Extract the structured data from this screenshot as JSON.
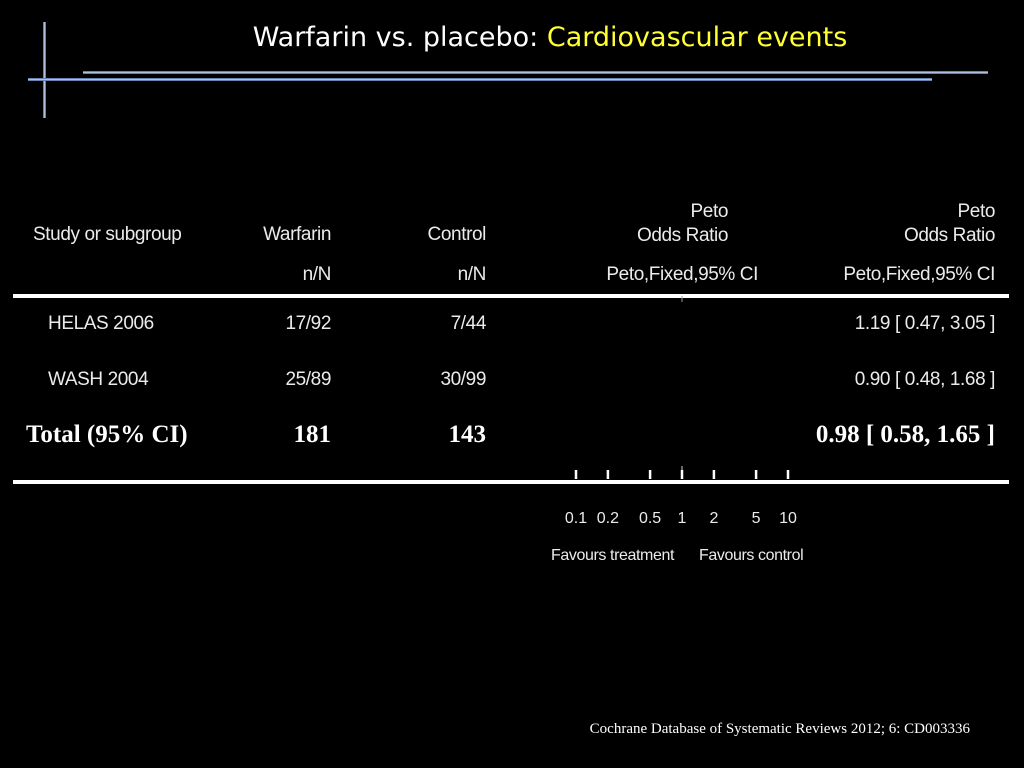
{
  "slide": {
    "title_main": "Warfarin vs. placebo:",
    "title_accent": "Cardiovascular events",
    "source": "Cochrane Database of Systematic Reviews 2012; 6: CD003336",
    "colors": {
      "background": "#000000",
      "accent": "#ffff33",
      "decor_blue": "#9db3dc",
      "text": "#ffffff"
    }
  },
  "chart_data": {
    "type": "table",
    "columns": {
      "study": "Study or subgroup",
      "treatment": "Warfarin",
      "control": "Control",
      "plot_line1": "Peto",
      "plot_line2": "Odds Ratio",
      "plot_line3": "Peto,Fixed,95% CI",
      "or_line1": "Peto",
      "or_line2": "Odds Ratio",
      "or_line3": "Peto,Fixed,95% CI",
      "treatment_sub": "n/N",
      "control_sub": "n/N"
    },
    "studies": [
      {
        "name": "HELAS 2006",
        "treatment": "17/92",
        "control": "7/44",
        "or": 1.19,
        "ci": [
          0.47,
          3.05
        ],
        "ci_text": "1.19 [ 0.47, 3.05 ]"
      },
      {
        "name": "WASH 2004",
        "treatment": "25/89",
        "control": "30/99",
        "or": 0.9,
        "ci": [
          0.48,
          1.68
        ],
        "ci_text": "0.90 [ 0.48, 1.68 ]"
      }
    ],
    "total": {
      "name": "Total (95% CI)",
      "treatment": "181",
      "control": "143",
      "or": 0.98,
      "ci": [
        0.58,
        1.65
      ],
      "ci_text": "0.98 [ 0.58, 1.65 ]"
    },
    "axis": {
      "scale": "log",
      "range": [
        0.1,
        10
      ],
      "ticks": [
        0.1,
        0.2,
        0.5,
        1,
        2,
        5,
        10
      ],
      "tick_labels": [
        "0.1",
        "0.2",
        "0.5",
        "1",
        "2",
        "5",
        "10"
      ],
      "left_label": "Favours treatment",
      "right_label": "Favours control"
    }
  }
}
